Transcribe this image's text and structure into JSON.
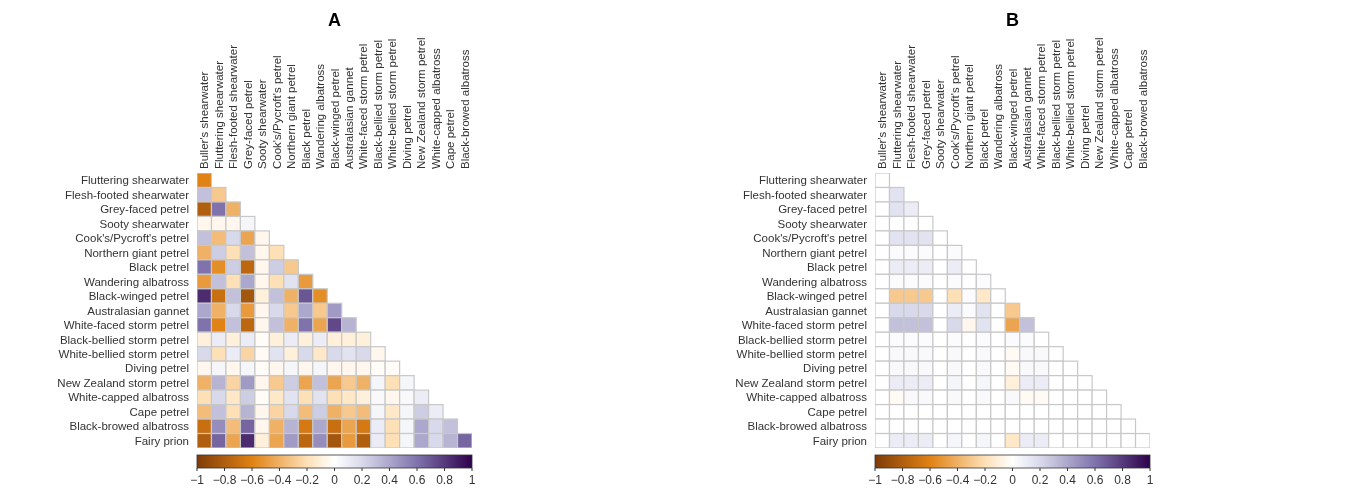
{
  "chart_data": [
    {
      "type": "heatmap",
      "title": "A",
      "clim": [
        -1,
        1
      ],
      "cticks": [
        -1,
        -0.8,
        -0.6,
        -0.4,
        -0.2,
        0,
        0.2,
        0.4,
        0.6,
        0.8,
        1
      ],
      "categories": [
        "Buller's shearwater",
        "Fluttering shearwater",
        "Flesh-footed shearwater",
        "Grey-faced petrel",
        "Sooty shearwater",
        "Cook's/Pycroft's petrel",
        "Northern giant petrel",
        "Black petrel",
        "Wandering albatross",
        "Black-winged petrel",
        "Australasian gannet",
        "White-faced storm petrel",
        "Black-bellied storm petrel",
        "White-bellied storm petrel",
        "Diving petrel",
        "New Zealand storm petrel",
        "White-capped albatross",
        "Cape petrel",
        "Black-browed albatross"
      ],
      "y_categories": [
        "Fluttering shearwater",
        "Flesh-footed shearwater",
        "Grey-faced petrel",
        "Sooty shearwater",
        "Cook's/Pycroft's petrel",
        "Northern giant petrel",
        "Black petrel",
        "Wandering albatross",
        "Black-winged petrel",
        "Australasian gannet",
        "White-faced storm petrel",
        "Black-bellied storm petrel",
        "White-bellied storm petrel",
        "Diving petrel",
        "New Zealand storm petrel",
        "White-capped albatross",
        "Cape petrel",
        "Black-browed albatross",
        "Fairy prion"
      ],
      "cells": [
        [
          -0.6,
          null,
          null,
          null,
          null,
          null,
          null,
          null,
          null,
          null,
          null,
          null,
          null,
          null,
          null,
          null,
          null,
          null,
          null
        ],
        [
          0.3,
          -0.3,
          null,
          null,
          null,
          null,
          null,
          null,
          null,
          null,
          null,
          null,
          null,
          null,
          null,
          null,
          null,
          null,
          null
        ],
        [
          -0.8,
          0.6,
          -0.4,
          null,
          null,
          null,
          null,
          null,
          null,
          null,
          null,
          null,
          null,
          null,
          null,
          null,
          null,
          null,
          null
        ],
        [
          -0.05,
          -0.05,
          -0.05,
          0.05,
          null,
          null,
          null,
          null,
          null,
          null,
          null,
          null,
          null,
          null,
          null,
          null,
          null,
          null,
          null
        ],
        [
          0.3,
          -0.35,
          0.2,
          -0.45,
          -0.05,
          null,
          null,
          null,
          null,
          null,
          null,
          null,
          null,
          null,
          null,
          null,
          null,
          null,
          null
        ],
        [
          -0.4,
          0.25,
          -0.2,
          0.3,
          -0.05,
          -0.2,
          null,
          null,
          null,
          null,
          null,
          null,
          null,
          null,
          null,
          null,
          null,
          null,
          null
        ],
        [
          0.6,
          -0.55,
          0.25,
          -0.75,
          -0.05,
          0.25,
          -0.3,
          null,
          null,
          null,
          null,
          null,
          null,
          null,
          null,
          null,
          null,
          null,
          null
        ],
        [
          -0.5,
          0.3,
          -0.2,
          0.4,
          -0.05,
          -0.2,
          0.15,
          -0.5,
          null,
          null,
          null,
          null,
          null,
          null,
          null,
          null,
          null,
          null,
          null
        ],
        [
          0.85,
          -0.7,
          0.3,
          -0.85,
          -0.1,
          0.3,
          -0.4,
          0.7,
          -0.55,
          null,
          null,
          null,
          null,
          null,
          null,
          null,
          null,
          null,
          null
        ],
        [
          0.4,
          -0.4,
          0.2,
          -0.5,
          -0.05,
          0.2,
          -0.3,
          0.4,
          -0.3,
          0.45,
          null,
          null,
          null,
          null,
          null,
          null,
          null,
          null,
          null
        ],
        [
          0.6,
          -0.6,
          0.3,
          -0.75,
          -0.05,
          0.3,
          -0.4,
          0.6,
          -0.45,
          0.75,
          0.35,
          null,
          null,
          null,
          null,
          null,
          null,
          null,
          null
        ],
        [
          -0.1,
          0.1,
          -0.1,
          0.1,
          -0.02,
          -0.1,
          0.1,
          -0.1,
          0.1,
          -0.1,
          -0.1,
          -0.1,
          null,
          null,
          null,
          null,
          null,
          null,
          null
        ],
        [
          0.2,
          -0.2,
          0.1,
          -0.25,
          -0.03,
          0.15,
          -0.1,
          0.2,
          -0.15,
          0.2,
          0.15,
          0.2,
          -0.05,
          null,
          null,
          null,
          null,
          null,
          null
        ],
        [
          -0.05,
          0.05,
          -0.05,
          0.05,
          -0.02,
          -0.05,
          0.05,
          -0.05,
          0.05,
          -0.05,
          -0.05,
          -0.05,
          -0.02,
          -0.02,
          null,
          null,
          null,
          null,
          null
        ],
        [
          -0.4,
          0.35,
          -0.25,
          0.45,
          -0.05,
          -0.3,
          0.25,
          -0.45,
          0.3,
          -0.45,
          -0.3,
          -0.4,
          0.05,
          -0.2,
          0.05,
          null,
          null,
          null,
          null
        ],
        [
          -0.2,
          0.2,
          -0.15,
          0.25,
          -0.02,
          -0.15,
          0.15,
          -0.2,
          0.15,
          -0.2,
          -0.15,
          -0.1,
          0.03,
          -0.05,
          0.03,
          0.1,
          null,
          null,
          null
        ],
        [
          -0.35,
          0.3,
          -0.2,
          0.35,
          -0.05,
          -0.25,
          0.2,
          -0.35,
          0.25,
          -0.4,
          -0.3,
          -0.35,
          0.05,
          -0.15,
          0.05,
          0.25,
          0.1,
          null,
          null
        ],
        [
          -0.7,
          0.5,
          -0.35,
          0.65,
          -0.05,
          -0.4,
          0.35,
          -0.65,
          0.4,
          -0.7,
          -0.45,
          -0.65,
          0.1,
          -0.2,
          0.05,
          0.4,
          0.2,
          0.3,
          null
        ],
        [
          -0.8,
          0.65,
          -0.45,
          0.85,
          -0.1,
          -0.45,
          0.45,
          -0.75,
          0.5,
          -0.85,
          -0.5,
          -0.8,
          0.1,
          -0.2,
          0.05,
          0.4,
          0.2,
          0.35,
          0.65
        ]
      ]
    },
    {
      "type": "heatmap",
      "title": "B",
      "clim": [
        -1,
        1
      ],
      "cticks": [
        -1,
        -0.8,
        -0.6,
        -0.4,
        -0.2,
        0,
        0.2,
        0.4,
        0.6,
        0.8,
        1
      ],
      "categories": [
        "Buller's shearwater",
        "Fluttering shearwater",
        "Flesh-footed shearwater",
        "Grey-faced petrel",
        "Sooty shearwater",
        "Cook's/Pycroft's petrel",
        "Northern giant petrel",
        "Black petrel",
        "Wandering albatross",
        "Black-winged petrel",
        "Australasian gannet",
        "White-faced storm petrel",
        "Black-bellied storm petrel",
        "White-bellied storm petrel",
        "Diving petrel",
        "New Zealand storm petrel",
        "White-capped albatross",
        "Cape petrel",
        "Black-browed albatross"
      ],
      "y_categories": [
        "Fluttering shearwater",
        "Flesh-footed shearwater",
        "Grey-faced petrel",
        "Sooty shearwater",
        "Cook's/Pycroft's petrel",
        "Northern giant petrel",
        "Black petrel",
        "Wandering albatross",
        "Black-winged petrel",
        "Australasian gannet",
        "White-faced storm petrel",
        "Black-bellied storm petrel",
        "White-bellied storm petrel",
        "Diving petrel",
        "New Zealand storm petrel",
        "White-capped albatross",
        "Cape petrel",
        "Black-browed albatross",
        "Fairy prion"
      ],
      "cells": [
        [
          0,
          null,
          null,
          null,
          null,
          null,
          null,
          null,
          null,
          null,
          null,
          null,
          null,
          null,
          null,
          null,
          null,
          null,
          null
        ],
        [
          0,
          0.15,
          null,
          null,
          null,
          null,
          null,
          null,
          null,
          null,
          null,
          null,
          null,
          null,
          null,
          null,
          null,
          null,
          null
        ],
        [
          0,
          0.15,
          0.1,
          null,
          null,
          null,
          null,
          null,
          null,
          null,
          null,
          null,
          null,
          null,
          null,
          null,
          null,
          null,
          null
        ],
        [
          0,
          0,
          0,
          0,
          null,
          null,
          null,
          null,
          null,
          null,
          null,
          null,
          null,
          null,
          null,
          null,
          null,
          null,
          null
        ],
        [
          0,
          0.15,
          0.15,
          0.15,
          0,
          null,
          null,
          null,
          null,
          null,
          null,
          null,
          null,
          null,
          null,
          null,
          null,
          null,
          null
        ],
        [
          0,
          0.02,
          0.02,
          0.02,
          0,
          0.02,
          null,
          null,
          null,
          null,
          null,
          null,
          null,
          null,
          null,
          null,
          null,
          null,
          null
        ],
        [
          0,
          0.1,
          0.1,
          0.1,
          0,
          0.1,
          0,
          null,
          null,
          null,
          null,
          null,
          null,
          null,
          null,
          null,
          null,
          null,
          null
        ],
        [
          0,
          0.02,
          0.02,
          0.02,
          0,
          0.02,
          0,
          0.02,
          null,
          null,
          null,
          null,
          null,
          null,
          null,
          null,
          null,
          null,
          null
        ],
        [
          0,
          -0.3,
          -0.3,
          -0.3,
          0,
          -0.2,
          0.02,
          -0.15,
          0,
          null,
          null,
          null,
          null,
          null,
          null,
          null,
          null,
          null,
          null
        ],
        [
          0,
          0.2,
          0.2,
          0.2,
          0,
          0.1,
          0.02,
          0.15,
          0,
          -0.3,
          null,
          null,
          null,
          null,
          null,
          null,
          null,
          null,
          null
        ],
        [
          0,
          0.3,
          0.3,
          0.3,
          0,
          0.2,
          -0.05,
          0.15,
          0,
          -0.45,
          0.3,
          null,
          null,
          null,
          null,
          null,
          null,
          null,
          null
        ],
        [
          0,
          0.02,
          0.02,
          0.02,
          0,
          0.02,
          0,
          0.02,
          0,
          0.02,
          0.02,
          0,
          null,
          null,
          null,
          null,
          null,
          null,
          null
        ],
        [
          0,
          0.03,
          0.03,
          0.03,
          0,
          0.03,
          0,
          0.03,
          0,
          -0.03,
          0.03,
          0.03,
          0,
          null,
          null,
          null,
          null,
          null,
          null
        ],
        [
          0,
          0.03,
          0.03,
          0.03,
          0,
          0.03,
          0,
          0.03,
          0,
          -0.03,
          0.03,
          0.03,
          0,
          0,
          null,
          null,
          null,
          null,
          null
        ],
        [
          0,
          0.1,
          0.1,
          0.1,
          0,
          0.05,
          0,
          0.05,
          0,
          -0.1,
          0.1,
          0.1,
          0,
          0,
          0,
          null,
          null,
          null,
          null
        ],
        [
          0,
          -0.03,
          0.03,
          0.03,
          0,
          0.03,
          0,
          0.03,
          0,
          0.03,
          -0.03,
          -0.03,
          0,
          0,
          0,
          0,
          null,
          null,
          null
        ],
        [
          0,
          0,
          0,
          0,
          0,
          0,
          0,
          0,
          0,
          0,
          0,
          0,
          0,
          0,
          0,
          0,
          0,
          null,
          null
        ],
        [
          0,
          0,
          0,
          0,
          0,
          0,
          0,
          0,
          0,
          0,
          0,
          0,
          0,
          0,
          0,
          0,
          0,
          0,
          null
        ],
        [
          0,
          0.1,
          0.1,
          0.1,
          0,
          0.05,
          0,
          0.05,
          0,
          -0.15,
          0.1,
          0.1,
          0,
          0,
          0,
          0,
          0,
          0,
          0
        ]
      ]
    }
  ]
}
